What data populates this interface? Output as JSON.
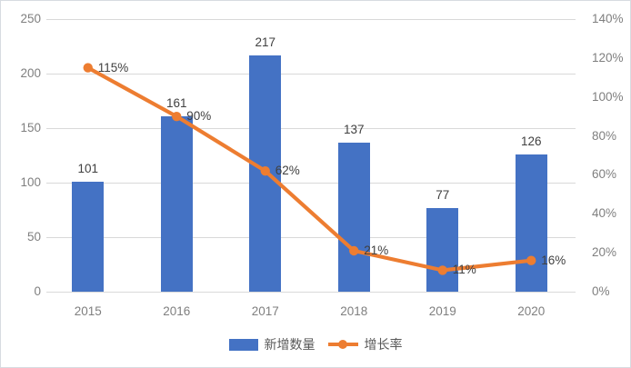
{
  "chart_data": {
    "type": "bar+line combo",
    "title": "",
    "categories": [
      "2015",
      "2016",
      "2017",
      "2018",
      "2019",
      "2020"
    ],
    "series": [
      {
        "name": "新增数量",
        "type": "bar",
        "axis": "left",
        "color": "#4472C4",
        "values": [
          101,
          161,
          217,
          137,
          77,
          126
        ],
        "data_labels": [
          "101",
          "161",
          "217",
          "137",
          "77",
          "126"
        ]
      },
      {
        "name": "增长率",
        "type": "line",
        "axis": "right",
        "color": "#ED7D31",
        "values": [
          115,
          90,
          62,
          21,
          11,
          16
        ],
        "data_labels": [
          "115%",
          "90%",
          "62%",
          "21%",
          "11%",
          "16%"
        ]
      }
    ],
    "left_axis": {
      "min": 0,
      "max": 250,
      "step": 50,
      "tick_labels": [
        "0",
        "50",
        "100",
        "150",
        "200",
        "250"
      ]
    },
    "right_axis": {
      "min": 0,
      "max": 140,
      "step": 20,
      "tick_labels": [
        "0%",
        "20%",
        "40%",
        "60%",
        "80%",
        "100%",
        "120%",
        "140%"
      ]
    },
    "grid": true,
    "legend_position": "bottom"
  },
  "colors": {
    "bar": "#4472C4",
    "line": "#ED7D31",
    "gridline": "#d9d9d9",
    "axis_text": "#7f7f7f",
    "data_label_text": "#404040",
    "legend_text": "#595959",
    "figure_border": "#d7dbe1",
    "background": "#ffffff"
  }
}
